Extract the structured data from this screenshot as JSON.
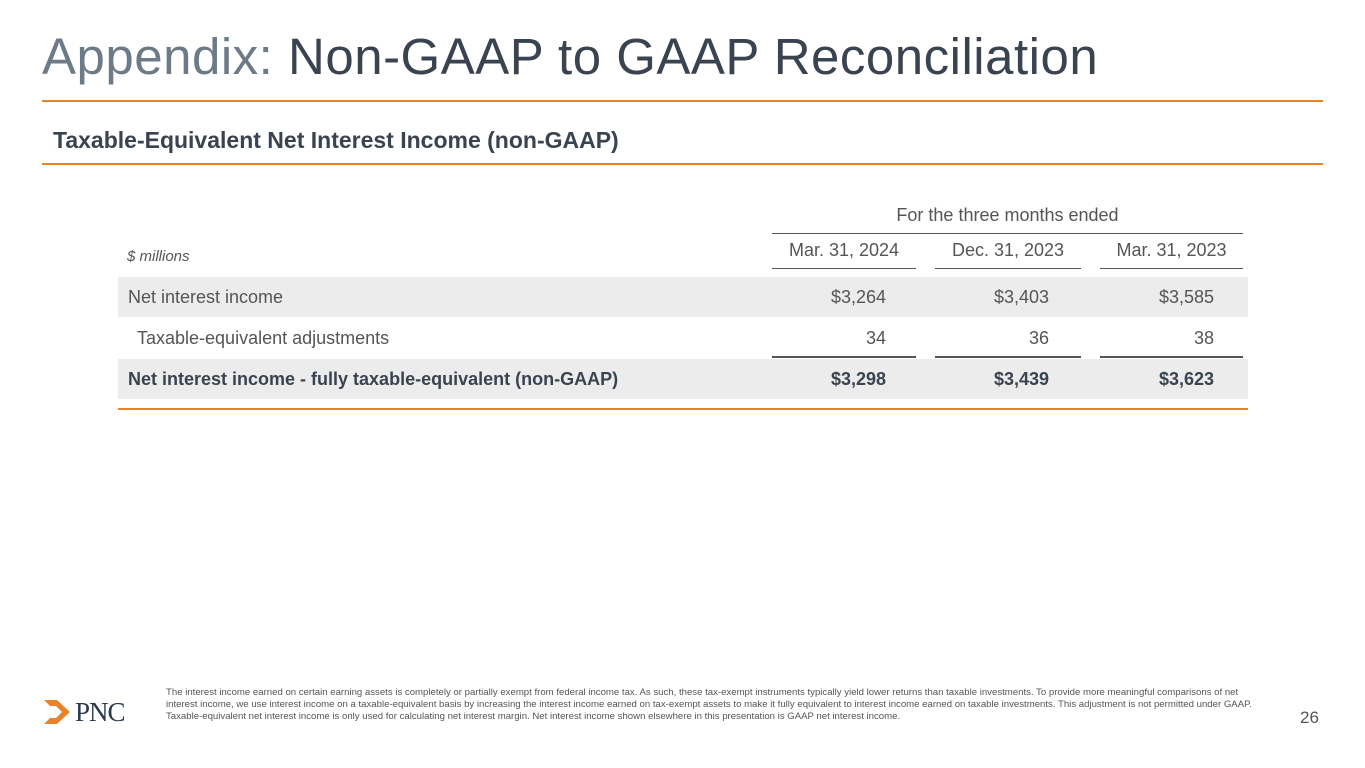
{
  "slide": {
    "title_prefix": "Appendix:",
    "title_main": "Non-GAAP to GAAP Reconciliation",
    "subtitle": "Taxable-Equivalent Net Interest Income (non-GAAP)",
    "page_number": "26"
  },
  "table": {
    "group_header": "For the three months ended",
    "units_label": "$ millions",
    "columns": [
      "Mar. 31, 2024",
      "Dec. 31, 2023",
      "Mar. 31, 2023"
    ],
    "rows": [
      {
        "label": "Net interest income",
        "values": [
          "$3,264",
          "$3,403",
          "$3,585"
        ]
      },
      {
        "label": "Taxable-equivalent adjustments",
        "values": [
          "34",
          "36",
          "38"
        ]
      },
      {
        "label": "Net interest income - fully taxable-equivalent  (non-GAAP)",
        "values": [
          "$3,298",
          "$3,439",
          "$3,623"
        ]
      }
    ]
  },
  "footnote": "The interest income earned on certain earning assets is completely or partially exempt from federal income tax. As such, these tax-exempt instruments typically yield lower returns than taxable investments. To provide more meaningful comparisons of net interest income, we use interest income on a taxable-equivalent basis by increasing the interest income earned on tax-exempt assets to make it fully equivalent to interest income earned on taxable investments. This adjustment is not permitted under GAAP. Taxable-equivalent net interest income is only used for calculating net interest margin. Net interest income shown elsewhere in this presentation is GAAP net interest income.",
  "logo": {
    "text": "PNC"
  },
  "colors": {
    "accent": "#e8832a",
    "title": "#3a4350",
    "title_prefix": "#6d7a87",
    "row_shade": "#ececec",
    "brand_navy": "#2b3a4f"
  }
}
